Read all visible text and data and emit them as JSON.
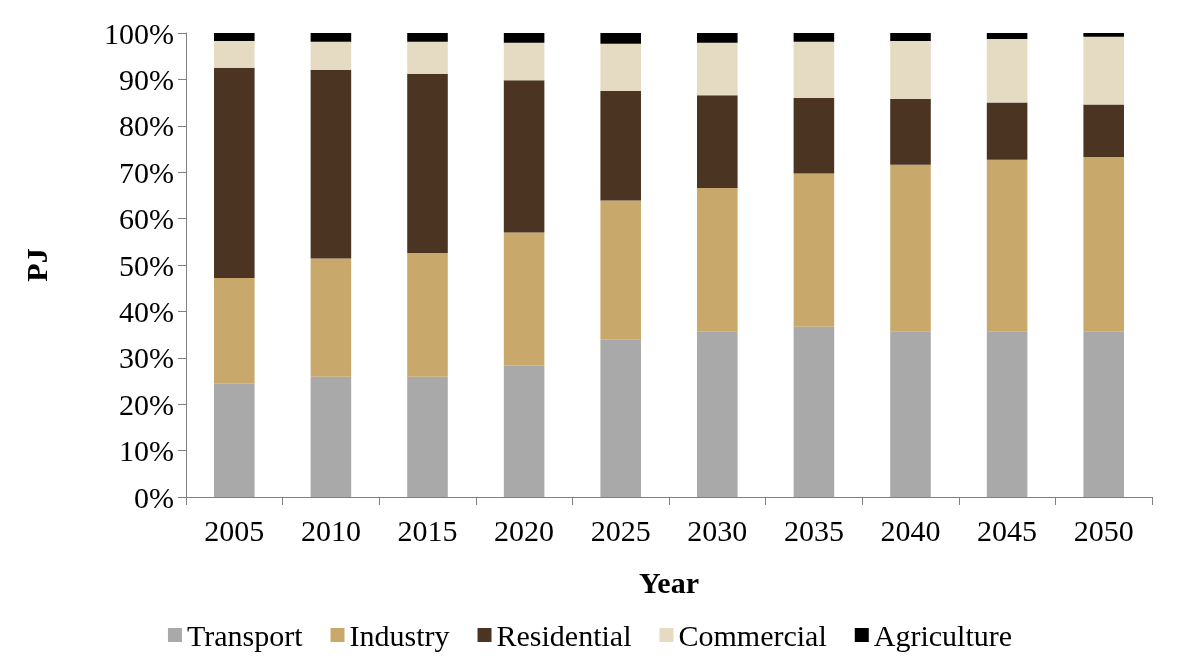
{
  "chart_data": {
    "type": "bar",
    "stacked": true,
    "xlabel": "Year",
    "ylabel": "PJ",
    "categories": [
      "2005",
      "2010",
      "2015",
      "2020",
      "2025",
      "2030",
      "2035",
      "2040",
      "2045",
      "2050"
    ],
    "series": [
      {
        "name": "Transport",
        "color": "#a9a9a9",
        "values": [
          24.4,
          25.9,
          25.9,
          28.4,
          34.0,
          35.7,
          36.7,
          35.7,
          35.7,
          35.7
        ]
      },
      {
        "name": "Industry",
        "color": "#c9a96b",
        "values": [
          22.8,
          25.5,
          26.7,
          28.6,
          29.9,
          30.9,
          33.0,
          35.9,
          37.0,
          37.6
        ]
      },
      {
        "name": "Residential",
        "color": "#4b3421",
        "values": [
          45.3,
          40.7,
          38.6,
          32.8,
          23.6,
          20.0,
          16.3,
          14.2,
          12.3,
          11.3
        ]
      },
      {
        "name": "Commercial",
        "color": "#e5dbc3",
        "values": [
          5.8,
          6.0,
          6.9,
          8.1,
          10.2,
          11.3,
          12.1,
          12.5,
          13.7,
          14.6
        ]
      },
      {
        "name": "Agriculture",
        "color": "#000000",
        "values": [
          1.7,
          1.9,
          1.9,
          2.1,
          2.3,
          2.1,
          1.9,
          1.7,
          1.3,
          0.8
        ]
      }
    ],
    "ylim": [
      0,
      100
    ],
    "yticks": [
      {
        "value": 0,
        "label": "0%"
      },
      {
        "value": 10,
        "label": "10%"
      },
      {
        "value": 20,
        "label": "20%"
      },
      {
        "value": 30,
        "label": "30%"
      },
      {
        "value": 40,
        "label": "40%"
      },
      {
        "value": 50,
        "label": "50%"
      },
      {
        "value": 60,
        "label": "60%"
      },
      {
        "value": 70,
        "label": "70%"
      },
      {
        "value": 80,
        "label": "80%"
      },
      {
        "value": 90,
        "label": "90%"
      },
      {
        "value": 100,
        "label": "100%"
      }
    ],
    "grid": false,
    "legend": "bottom"
  }
}
